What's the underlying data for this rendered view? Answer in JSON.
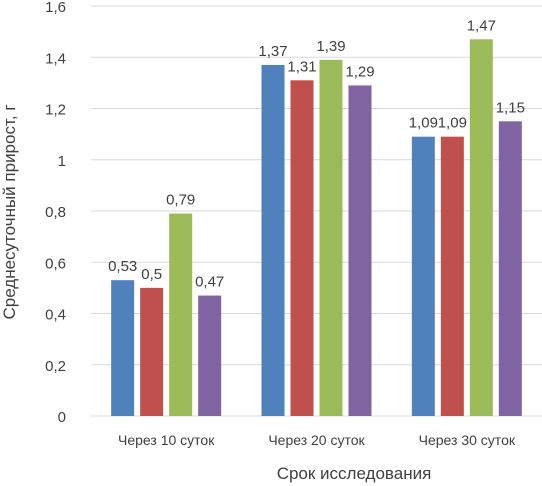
{
  "chart_data": {
    "type": "bar",
    "xlabel": "Срок исследования",
    "ylabel": "Среднесуточный прирост, г",
    "ylim": [
      0,
      1.6
    ],
    "yticks": [
      "0",
      "0,2",
      "0,4",
      "0,6",
      "0,8",
      "1",
      "1,2",
      "1,4",
      "1,6"
    ],
    "categories": [
      "Через 10 суток",
      "Через 20 суток",
      "Через 30 суток"
    ],
    "series": [
      {
        "color": "#4F81BD",
        "values": [
          0.53,
          1.37,
          1.09
        ],
        "labels": [
          "0,53",
          "1,37",
          "1,09"
        ]
      },
      {
        "color": "#C0504D",
        "values": [
          0.5,
          1.31,
          1.09
        ],
        "labels": [
          "0,5",
          "1,31",
          "1,09"
        ]
      },
      {
        "color": "#9BBB59",
        "values": [
          0.79,
          1.39,
          1.47
        ],
        "labels": [
          "0,79",
          "1,39",
          "1,47"
        ]
      },
      {
        "color": "#8064A2",
        "values": [
          0.47,
          1.29,
          1.15
        ],
        "labels": [
          "0,47",
          "1,29",
          "1,15"
        ]
      }
    ],
    "grid": true,
    "grid_color": "#D9D9D9",
    "legend": "none"
  }
}
